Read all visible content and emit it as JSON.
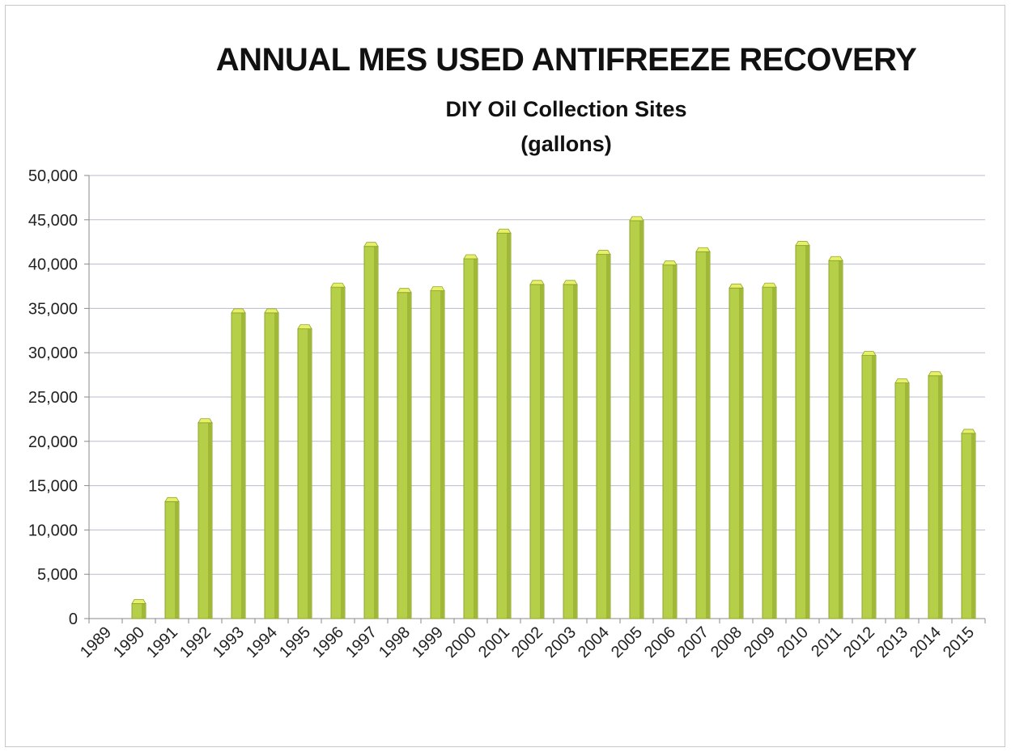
{
  "chart_data": {
    "type": "bar",
    "title": "ANNUAL MES USED ANTIFREEZE RECOVERY",
    "subtitle": "DIY Oil Collection Sites",
    "unit_label": "(gallons)",
    "xlabel": "",
    "ylabel": "",
    "ylim": [
      0,
      50000
    ],
    "yticks": [
      0,
      5000,
      10000,
      15000,
      20000,
      25000,
      30000,
      35000,
      40000,
      45000,
      50000
    ],
    "ytick_labels": [
      "0",
      "5,000",
      "10,000",
      "15,000",
      "20,000",
      "25,000",
      "30,000",
      "35,000",
      "40,000",
      "45,000",
      "50,000"
    ],
    "categories": [
      "1989",
      "1990",
      "1991",
      "1992",
      "1993",
      "1994",
      "1995",
      "1996",
      "1997",
      "1998",
      "1999",
      "2000",
      "2001",
      "2002",
      "2003",
      "2004",
      "2005",
      "2006",
      "2007",
      "2008",
      "2009",
      "2010",
      "2011",
      "2012",
      "2013",
      "2014",
      "2015"
    ],
    "values": [
      0,
      1700,
      13200,
      22100,
      34500,
      34500,
      32700,
      37400,
      42000,
      36800,
      37000,
      40600,
      43500,
      37700,
      37700,
      41100,
      44900,
      39900,
      41400,
      37300,
      37400,
      42100,
      40400,
      29700,
      26600,
      27400,
      20900
    ],
    "grid": true,
    "legend": "none",
    "bar_color": "#b5cf48",
    "bar_top_color": "#e8f06a",
    "bar_shade_color": "#8ea52c"
  }
}
